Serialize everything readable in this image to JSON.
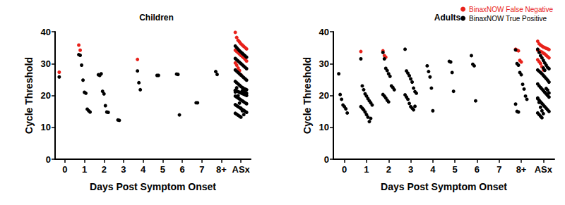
{
  "chart_data": [
    {
      "type": "scatter",
      "title": "Children",
      "x_label": "Days Post Symptom Onset",
      "y_label": "Cycle Threshold",
      "categories": [
        "0",
        "1",
        "2",
        "3",
        "4",
        "5",
        "6",
        "7",
        "8+",
        "ASx"
      ],
      "ylim": [
        0,
        40
      ],
      "yticks": [
        0,
        10,
        20,
        30,
        40
      ],
      "grid": false,
      "series": [
        {
          "name": "BinaxNOW False Negative",
          "color": "#e8221b",
          "marker": "circle",
          "x": [
            "0",
            "1",
            "1",
            "4",
            "ASx",
            "ASx",
            "ASx",
            "ASx",
            "ASx",
            "ASx",
            "ASx",
            "ASx",
            "ASx",
            "ASx",
            "ASx",
            "ASx",
            "ASx",
            "ASx",
            "ASx",
            "ASx",
            "ASx",
            "ASx",
            "ASx",
            "ASx",
            "ASx",
            "ASx",
            "ASx"
          ],
          "values": [
            27.3,
            35.8,
            34.2,
            31.3,
            39.8,
            38.2,
            37.3,
            36.8,
            36.2,
            35.8,
            35.4,
            35.0,
            34.6,
            34.2,
            33.8,
            33.4,
            33.0,
            32.6,
            32.2,
            31.8,
            31.3,
            30.8,
            30.2,
            29.5,
            28.6,
            27.8,
            26.5
          ]
        },
        {
          "name": "BinaxNOW True Positive",
          "color": "#000000",
          "marker": "circle",
          "x": [
            "0",
            "1",
            "1",
            "1",
            "1",
            "1",
            "1",
            "1",
            "1",
            "1",
            "2",
            "2",
            "2",
            "2",
            "2",
            "2",
            "2",
            "2",
            "3",
            "3",
            "4",
            "4",
            "4",
            "5",
            "5",
            "6",
            "6",
            "6",
            "7",
            "7",
            "8+",
            "8+",
            "ASx",
            "ASx",
            "ASx",
            "ASx",
            "ASx",
            "ASx",
            "ASx",
            "ASx",
            "ASx",
            "ASx",
            "ASx",
            "ASx",
            "ASx",
            "ASx",
            "ASx",
            "ASx",
            "ASx",
            "ASx",
            "ASx",
            "ASx",
            "ASx",
            "ASx",
            "ASx",
            "ASx",
            "ASx",
            "ASx",
            "ASx",
            "ASx",
            "ASx",
            "ASx",
            "ASx",
            "ASx",
            "ASx",
            "ASx",
            "ASx",
            "ASx",
            "ASx",
            "ASx",
            "ASx",
            "ASx",
            "ASx",
            "ASx",
            "ASx",
            "ASx",
            "ASx",
            "ASx",
            "ASx",
            "ASx",
            "ASx",
            "ASx",
            "ASx",
            "ASx",
            "ASx",
            "ASx",
            "ASx",
            "ASx",
            "ASx",
            "ASx",
            "ASx",
            "ASx",
            "ASx",
            "ASx",
            "ASx",
            "ASx",
            "ASx",
            "ASx",
            "ASx",
            "ASx",
            "ASx",
            "ASx",
            "ASx",
            "ASx",
            "ASx",
            "ASx",
            "ASx",
            "ASx",
            "ASx",
            "ASx",
            "ASx"
          ],
          "values": [
            25.8,
            32.8,
            32.6,
            29.5,
            24.8,
            21.0,
            20.7,
            15.7,
            15.2,
            14.8,
            26.5,
            26.3,
            26.8,
            21.3,
            20.5,
            16.8,
            14.8,
            14.7,
            12.3,
            12.2,
            27.7,
            24.0,
            21.8,
            26.3,
            26.3,
            26.7,
            26.6,
            13.9,
            17.7,
            17.7,
            27.5,
            26.6,
            35.5,
            35.0,
            34.5,
            34.0,
            33.6,
            33.2,
            32.8,
            32.4,
            32.0,
            31.6,
            31.2,
            30.8,
            30.4,
            30.0,
            29.6,
            29.2,
            28.8,
            28.4,
            28.0,
            27.6,
            27.2,
            26.8,
            26.4,
            26.0,
            25.6,
            25.2,
            24.8,
            24.4,
            24.0,
            23.6,
            23.2,
            22.8,
            22.5,
            22.2,
            22.0,
            21.8,
            21.6,
            21.4,
            21.2,
            21.0,
            20.8,
            20.6,
            20.4,
            20.2,
            20.0,
            19.8,
            19.5,
            19.2,
            18.9,
            18.6,
            18.3,
            18.0,
            17.7,
            17.4,
            17.1,
            16.8,
            16.5,
            16.2,
            15.9,
            15.6,
            15.3,
            15.0,
            14.7,
            14.4,
            14.1,
            13.8,
            13.5,
            13.2,
            21.5,
            21.3,
            20.9,
            20.7,
            21.1,
            22.4,
            19.9,
            17.6,
            16.0,
            15.2,
            14.0
          ]
        }
      ]
    },
    {
      "type": "scatter",
      "title": "Adults",
      "x_label": "Days Post Symptom Onset",
      "y_label": "Cycle Threshold",
      "categories": [
        "0",
        "1",
        "2",
        "3",
        "4",
        "5",
        "6",
        "7",
        "8+",
        "ASx"
      ],
      "ylim": [
        0,
        40
      ],
      "yticks": [
        0,
        10,
        20,
        30,
        40
      ],
      "grid": false,
      "legend": "upper right",
      "series": [
        {
          "name": "BinaxNOW False Negative",
          "color": "#e8221b",
          "marker": "circle",
          "x": [
            "1",
            "2",
            "2",
            "2",
            "8+",
            "8+",
            "8+",
            "8+",
            "8+",
            "ASx",
            "ASx",
            "ASx",
            "ASx",
            "ASx",
            "ASx",
            "ASx",
            "ASx",
            "ASx",
            "ASx",
            "ASx",
            "ASx",
            "ASx",
            "ASx",
            "ASx",
            "ASx",
            "ASx",
            "ASx",
            "ASx",
            "ASx",
            "ASx",
            "ASx",
            "ASx"
          ],
          "values": [
            33.8,
            34.0,
            32.5,
            32.0,
            34.5,
            34.2,
            34.0,
            31.0,
            30.5,
            37.0,
            36.2,
            35.8,
            35.5,
            35.2,
            35.0,
            34.8,
            34.6,
            34.4,
            34.2,
            34.0,
            33.8,
            33.6,
            33.3,
            33.0,
            32.6,
            32.2,
            31.8,
            31.2,
            30.6,
            30.0,
            29.0,
            28.0
          ]
        },
        {
          "name": "BinaxNOW True Positive",
          "color": "#000000",
          "marker": "circle",
          "x": [
            "0",
            "0",
            "0",
            "0",
            "0",
            "0",
            "0",
            "1",
            "1",
            "1",
            "1",
            "1",
            "1",
            "1",
            "1",
            "1",
            "1",
            "1",
            "1",
            "1",
            "1",
            "1",
            "1",
            "1",
            "2",
            "2",
            "2",
            "2",
            "2",
            "2",
            "2",
            "2",
            "2",
            "2",
            "2",
            "2",
            "2",
            "2",
            "3",
            "3",
            "3",
            "3",
            "3",
            "3",
            "3",
            "3",
            "3",
            "3",
            "3",
            "3",
            "3",
            "3",
            "3",
            "3",
            "3",
            "4",
            "4",
            "4",
            "4",
            "4",
            "5",
            "5",
            "5",
            "5",
            "6",
            "6",
            "6",
            "6",
            "8+",
            "8+",
            "8+",
            "8+",
            "8+",
            "8+",
            "8+",
            "8+",
            "8+",
            "8+",
            "8+",
            "8+",
            "ASx",
            "ASx",
            "ASx",
            "ASx",
            "ASx",
            "ASx",
            "ASx",
            "ASx",
            "ASx",
            "ASx",
            "ASx",
            "ASx",
            "ASx",
            "ASx",
            "ASx",
            "ASx",
            "ASx",
            "ASx",
            "ASx",
            "ASx",
            "ASx",
            "ASx",
            "ASx",
            "ASx",
            "ASx",
            "ASx",
            "ASx",
            "ASx",
            "ASx",
            "ASx",
            "ASx",
            "ASx",
            "ASx",
            "ASx",
            "ASx",
            "ASx",
            "ASx",
            "ASx",
            "ASx",
            "ASx",
            "ASx",
            "ASx",
            "ASx",
            "ASx",
            "ASx",
            "ASx",
            "ASx",
            "ASx",
            "ASx",
            "ASx"
          ],
          "values": [
            26.8,
            20.3,
            18.8,
            17.0,
            16.5,
            15.8,
            14.5,
            31.5,
            23.0,
            21.8,
            20.5,
            19.8,
            19.0,
            18.3,
            17.7,
            17.0,
            16.5,
            16.0,
            15.5,
            14.8,
            14.0,
            13.2,
            11.8,
            12.8,
            33.5,
            31.5,
            28.5,
            27.8,
            26.8,
            26.0,
            23.0,
            22.5,
            21.8,
            20.3,
            19.8,
            19.2,
            18.5,
            18.0,
            34.5,
            27.7,
            27.0,
            26.2,
            25.2,
            24.2,
            22.3,
            21.2,
            20.7,
            20.2,
            19.5,
            18.8,
            17.5,
            16.5,
            16.0,
            15.5,
            16.6,
            29.3,
            27.5,
            25.8,
            22.3,
            15.2,
            30.7,
            30.5,
            27.2,
            21.3,
            32.5,
            29.8,
            29.3,
            18.3,
            34.3,
            30.0,
            29.5,
            27.2,
            26.5,
            23.5,
            22.0,
            19.8,
            18.8,
            17.3,
            15.0,
            14.8,
            34.5,
            33.5,
            32.5,
            31.8,
            31.0,
            30.2,
            29.5,
            28.8,
            28.4,
            28.0,
            27.6,
            27.2,
            26.8,
            26.3,
            25.8,
            25.3,
            24.8,
            24.2,
            23.6,
            23.0,
            22.5,
            22.0,
            21.5,
            21.0,
            20.5,
            20.0,
            19.5,
            19.0,
            18.5,
            18.0,
            17.5,
            17.0,
            16.5,
            16.0,
            15.5,
            15.0,
            14.5,
            14.0,
            13.5,
            13.0,
            28.6,
            27.9,
            22.2,
            21.7,
            20.8,
            19.2,
            17.8,
            16.3,
            15.2,
            14.3
          ]
        }
      ]
    }
  ]
}
